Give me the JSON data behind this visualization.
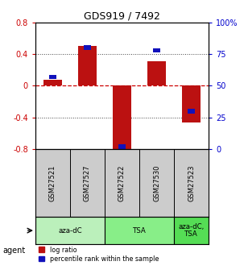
{
  "title": "GDS919 / 7492",
  "samples": [
    "GSM27521",
    "GSM27527",
    "GSM27522",
    "GSM27530",
    "GSM27523"
  ],
  "log_ratios": [
    0.07,
    0.5,
    -0.82,
    0.31,
    -0.46
  ],
  "percentile_ranks": [
    57,
    80,
    2,
    78,
    30
  ],
  "agents": [
    {
      "label": "aza-dC",
      "start": 0,
      "end": 2,
      "color": "#bbf0bb"
    },
    {
      "label": "TSA",
      "start": 2,
      "end": 4,
      "color": "#88ee88"
    },
    {
      "label": "aza-dC,\nTSA",
      "start": 4,
      "end": 5,
      "color": "#55dd55"
    }
  ],
  "ylim_left": [
    -0.8,
    0.8
  ],
  "ylim_right": [
    0,
    100
  ],
  "yticks_left": [
    -0.8,
    -0.4,
    0.0,
    0.4,
    0.8
  ],
  "yticks_right": [
    0,
    25,
    50,
    75,
    100
  ],
  "ytick_labels_right": [
    "0",
    "25",
    "50",
    "75",
    "100%"
  ],
  "bar_color_red": "#bb1111",
  "bar_color_blue": "#1111bb",
  "zero_line_color": "#cc0000",
  "grid_color": "#444444",
  "bg_color": "#ffffff",
  "red_bar_width": 0.55,
  "blue_bar_width": 0.22,
  "legend_red": "log ratio",
  "legend_blue": "percentile rank within the sample",
  "agent_label": "agent",
  "left_axis_color": "#cc0000",
  "right_axis_color": "#0000cc",
  "sample_bg": "#cccccc"
}
